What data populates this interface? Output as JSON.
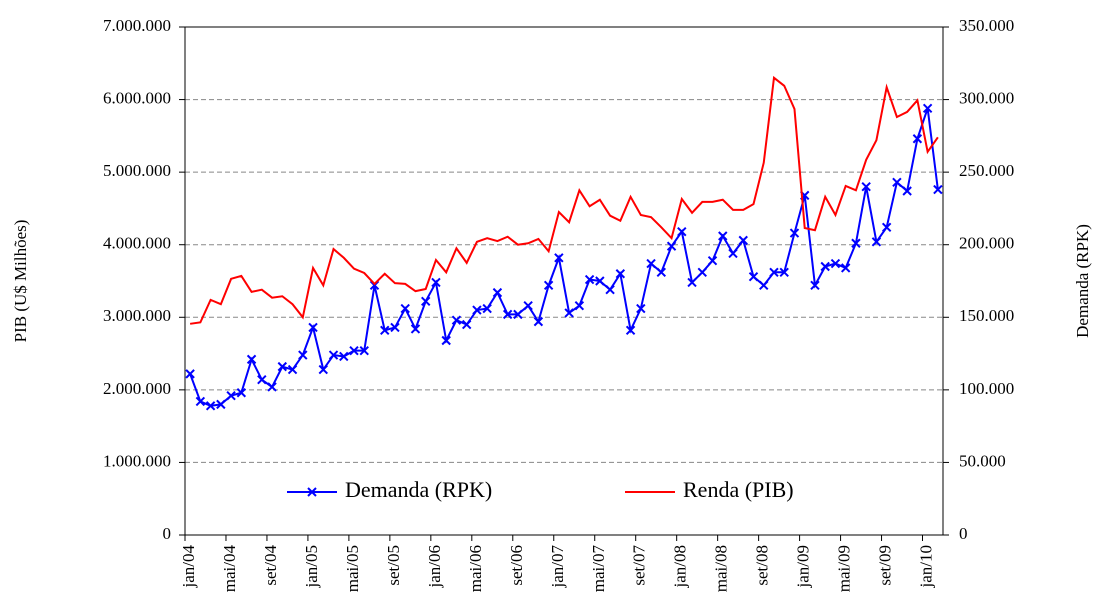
{
  "chart_data": {
    "type": "line",
    "ylabel": "PIB (U$ Milhões)",
    "y2label": "Demanda (RPK)",
    "categories": [
      "jan/04",
      null,
      null,
      null,
      "mai/04",
      null,
      null,
      null,
      "set/04",
      null,
      null,
      null,
      "jan/05",
      null,
      null,
      null,
      "mai/05",
      null,
      null,
      null,
      "set/05",
      null,
      null,
      null,
      "jan/06",
      null,
      null,
      null,
      "mai/06",
      null,
      null,
      null,
      "set/06",
      null,
      null,
      null,
      "jan/07",
      null,
      null,
      null,
      "mai/07",
      null,
      null,
      null,
      "set/07",
      null,
      null,
      null,
      "jan/08",
      null,
      null,
      null,
      "mai/08",
      null,
      null,
      null,
      "set/08",
      null,
      null,
      null,
      "jan/09",
      null,
      null,
      null,
      "mai/09",
      null,
      null,
      null,
      "set/09",
      null,
      null,
      null,
      "jan/10",
      null
    ],
    "series": [
      {
        "name": "Demanda (RPK)",
        "color": "#0000ff",
        "axis": "y2",
        "marker": "x",
        "values": [
          111000,
          92000,
          89000,
          90000,
          96000,
          98000,
          121000,
          107000,
          102000,
          116000,
          114000,
          124000,
          143000,
          114000,
          124000,
          123000,
          127000,
          127000,
          172000,
          141000,
          143000,
          156000,
          142000,
          161000,
          174000,
          134000,
          148000,
          145000,
          155000,
          156000,
          167000,
          152000,
          152000,
          158000,
          147000,
          172000,
          191000,
          153000,
          158000,
          176000,
          175000,
          169000,
          180000,
          141000,
          156000,
          187000,
          181000,
          199000,
          209000,
          174000,
          181000,
          189000,
          206000,
          194000,
          203000,
          178000,
          172000,
          181000,
          181000,
          208000,
          234000,
          172000,
          185000,
          187000,
          184000,
          201000,
          240000,
          202000,
          212000,
          243000,
          237000,
          273000,
          294000,
          238000
        ]
      },
      {
        "name": "Renda (PIB)",
        "color": "#ff0000",
        "axis": "y",
        "values": [
          2910000,
          2930000,
          3240000,
          3180000,
          3530000,
          3570000,
          3350000,
          3380000,
          3270000,
          3290000,
          3180000,
          3000000,
          3680000,
          3440000,
          3940000,
          3820000,
          3670000,
          3610000,
          3460000,
          3600000,
          3470000,
          3460000,
          3360000,
          3390000,
          3790000,
          3620000,
          3950000,
          3750000,
          4040000,
          4090000,
          4050000,
          4110000,
          4000000,
          4020000,
          4080000,
          3910000,
          4450000,
          4310000,
          4750000,
          4530000,
          4620000,
          4400000,
          4330000,
          4660000,
          4410000,
          4380000,
          4240000,
          4090000,
          4630000,
          4440000,
          4590000,
          4590000,
          4620000,
          4480000,
          4480000,
          4560000,
          5130000,
          6300000,
          6190000,
          5870000,
          4230000,
          4200000,
          4660000,
          4410000,
          4810000,
          4750000,
          5170000,
          5440000,
          6170000,
          5760000,
          5830000,
          5990000,
          5280000,
          5480000
        ]
      }
    ],
    "ylim": [
      0,
      7000000
    ],
    "yticks": [
      0,
      {
        "value": 1000000,
        "label": "1.000.000"
      },
      {
        "value": 2000000,
        "label": "2.000.000"
      },
      {
        "value": 3000000,
        "label": "3.000.000"
      },
      {
        "value": 4000000,
        "label": "4.000.000"
      },
      {
        "value": 5000000,
        "label": "5.000.000"
      },
      {
        "value": 6000000,
        "label": "6.000.000"
      },
      {
        "value": 7000000,
        "label": "7.000.000"
      }
    ],
    "y2lim": [
      0,
      350000
    ],
    "y2ticks": [
      0,
      {
        "value": 50000,
        "label": "50.000"
      },
      {
        "value": 100000,
        "label": "100.000"
      },
      {
        "value": 150000,
        "label": "150.000"
      },
      {
        "value": 200000,
        "label": "200.000"
      },
      {
        "value": 250000,
        "label": "250.000"
      },
      {
        "value": 300000,
        "label": "300.000"
      },
      {
        "value": 350000,
        "label": "350.000"
      }
    ],
    "grid": true,
    "legend": "lower center"
  }
}
